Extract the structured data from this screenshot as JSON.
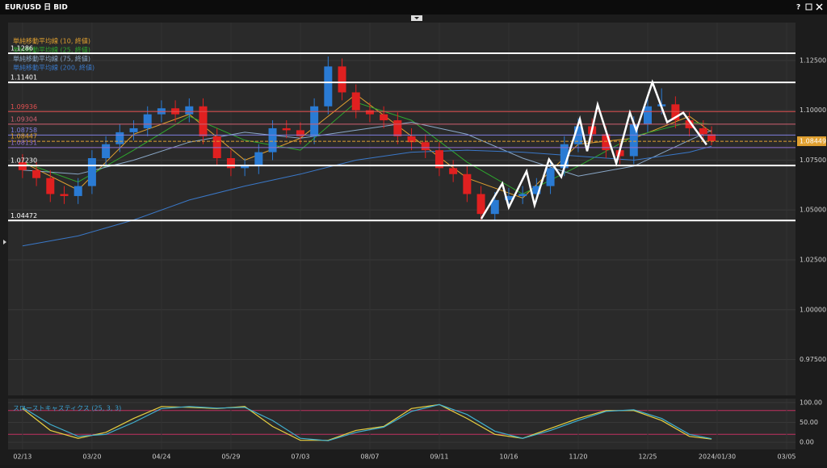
{
  "window": {
    "title": "EUR/USD 日 BID",
    "help": "?"
  },
  "chart_data": [
    {
      "type": "candlestick",
      "xlim": [
        -5.2,
        278.2
      ],
      "ylim": [
        0.957,
        1.144
      ],
      "yticks": [
        {
          "value": 1.125,
          "label": "1.12500"
        },
        {
          "value": 1.1,
          "label": "1.10000"
        },
        {
          "value": 1.075,
          "label": "1.07500"
        },
        {
          "value": 1.05,
          "label": "1.05000"
        },
        {
          "value": 1.025,
          "label": "1.02500"
        },
        {
          "value": 1.0,
          "label": "1.00000"
        },
        {
          "value": 0.975,
          "label": "0.97500"
        }
      ],
      "grid": true,
      "up_color": "#2a7bd4",
      "down_color": "#e02020",
      "x": [
        0,
        5,
        10,
        15,
        20,
        25,
        30,
        35,
        40,
        45,
        50,
        55,
        60,
        65,
        70,
        75,
        80,
        85,
        90,
        95,
        100,
        105,
        110,
        115,
        120,
        125,
        130,
        135,
        140,
        145,
        150,
        155,
        160,
        165,
        170,
        175,
        180,
        185,
        190,
        195,
        200,
        205,
        210,
        215,
        220,
        225,
        230,
        235,
        240,
        245,
        248
      ],
      "open": [
        1.074,
        1.07,
        1.066,
        1.058,
        1.057,
        1.062,
        1.076,
        1.083,
        1.089,
        1.091,
        1.098,
        1.101,
        1.098,
        1.102,
        1.087,
        1.076,
        1.071,
        1.072,
        1.079,
        1.091,
        1.09,
        1.087,
        1.102,
        1.122,
        1.109,
        1.1,
        1.098,
        1.095,
        1.087,
        1.084,
        1.08,
        1.071,
        1.068,
        1.058,
        1.048,
        1.055,
        1.057,
        1.058,
        1.062,
        1.071,
        1.083,
        1.092,
        1.088,
        1.08,
        1.077,
        1.093,
        1.102,
        1.103,
        1.095,
        1.091,
        1.088
      ],
      "high": [
        1.078,
        1.074,
        1.07,
        1.062,
        1.066,
        1.08,
        1.087,
        1.093,
        1.095,
        1.102,
        1.105,
        1.105,
        1.106,
        1.106,
        1.091,
        1.08,
        1.076,
        1.083,
        1.095,
        1.095,
        1.094,
        1.106,
        1.127,
        1.126,
        1.113,
        1.104,
        1.102,
        1.099,
        1.091,
        1.088,
        1.084,
        1.075,
        1.072,
        1.062,
        1.059,
        1.061,
        1.062,
        1.066,
        1.075,
        1.087,
        1.096,
        1.096,
        1.092,
        1.084,
        1.097,
        1.106,
        1.111,
        1.107,
        1.099,
        1.095,
        1.092
      ],
      "low": [
        1.066,
        1.062,
        1.054,
        1.053,
        1.053,
        1.058,
        1.072,
        1.079,
        1.085,
        1.087,
        1.094,
        1.094,
        1.094,
        1.083,
        1.072,
        1.067,
        1.067,
        1.068,
        1.075,
        1.086,
        1.083,
        1.083,
        1.098,
        1.105,
        1.096,
        1.094,
        1.091,
        1.083,
        1.08,
        1.076,
        1.067,
        1.064,
        1.054,
        1.045,
        1.045,
        1.051,
        1.053,
        1.054,
        1.058,
        1.067,
        1.079,
        1.084,
        1.076,
        1.073,
        1.073,
        1.089,
        1.098,
        1.091,
        1.087,
        1.084,
        1.0825
      ],
      "close": [
        1.07,
        1.066,
        1.058,
        1.057,
        1.062,
        1.076,
        1.083,
        1.089,
        1.091,
        1.098,
        1.101,
        1.098,
        1.102,
        1.087,
        1.076,
        1.071,
        1.072,
        1.079,
        1.091,
        1.09,
        1.087,
        1.102,
        1.122,
        1.109,
        1.1,
        1.098,
        1.095,
        1.087,
        1.084,
        1.08,
        1.071,
        1.068,
        1.058,
        1.048,
        1.055,
        1.057,
        1.058,
        1.062,
        1.071,
        1.083,
        1.092,
        1.088,
        1.08,
        1.077,
        1.093,
        1.102,
        1.103,
        1.095,
        1.091,
        1.088,
        1.0845
      ],
      "series": [
        {
          "name": "単純移動平均線 (10, 終値)",
          "color": "#e0a030",
          "x": [
            0,
            20,
            40,
            60,
            80,
            100,
            120,
            140,
            160,
            180,
            200,
            220,
            240,
            248
          ],
          "values": [
            1.074,
            1.06,
            1.088,
            1.098,
            1.075,
            1.086,
            1.108,
            1.087,
            1.066,
            1.056,
            1.083,
            1.086,
            1.097,
            1.089
          ]
        },
        {
          "name": "単純移動平均線 (25, 終値)",
          "color": "#2ea82e",
          "x": [
            0,
            20,
            40,
            60,
            80,
            100,
            120,
            140,
            160,
            180,
            200,
            220,
            240,
            248
          ],
          "values": [
            1.074,
            1.064,
            1.08,
            1.097,
            1.085,
            1.08,
            1.104,
            1.095,
            1.074,
            1.058,
            1.072,
            1.087,
            1.094,
            1.093
          ]
        },
        {
          "name": "単純移動平均線 (75, 終値)",
          "color": "#8aa8c8",
          "x": [
            0,
            20,
            40,
            60,
            80,
            100,
            120,
            140,
            160,
            180,
            200,
            220,
            240,
            248
          ],
          "values": [
            1.07,
            1.068,
            1.075,
            1.084,
            1.089,
            1.086,
            1.09,
            1.094,
            1.088,
            1.076,
            1.067,
            1.072,
            1.085,
            1.09
          ]
        },
        {
          "name": "単純移動平均線 (200, 終値)",
          "color": "#3a78c8",
          "x": [
            0,
            20,
            40,
            60,
            80,
            100,
            120,
            140,
            160,
            180,
            200,
            220,
            240,
            248
          ],
          "values": [
            1.032,
            1.037,
            1.045,
            1.055,
            1.062,
            1.068,
            1.075,
            1.079,
            1.08,
            1.079,
            1.077,
            1.075,
            1.079,
            1.082
          ]
        }
      ],
      "hlines": [
        {
          "value": 1.1286,
          "color": "#ffffff"
        },
        {
          "value": 1.11401,
          "color": "#ffffff"
        },
        {
          "value": 1.09936,
          "color": "#e05050"
        },
        {
          "value": 1.09304,
          "color": "#d06070"
        },
        {
          "value": 1.08758,
          "color": "#8080e0"
        },
        {
          "value": 1.08447,
          "color": "#e0a030"
        },
        {
          "value": 1.08131,
          "color": "#9070d0"
        },
        {
          "value": 1.0723,
          "label": "1.07230",
          "color": "#ffffff"
        },
        {
          "value": 1.04472,
          "color": "#ffffff"
        }
      ],
      "current_price": 1.08449,
      "drawing": {
        "color": "#ffffff",
        "x": [
          165.1,
          172.7,
          175.0,
          181.4,
          184.3,
          189.5,
          193.9,
          200.6,
          203.2,
          207.0,
          213.7,
          218.6,
          220.9,
          226.7,
          232.0,
          237.8,
          246.2
        ],
        "y": [
          1.0456,
          1.0633,
          1.0513,
          1.0694,
          1.0525,
          1.0754,
          1.0666,
          1.0956,
          1.0795,
          1.1028,
          1.0734,
          1.0988,
          1.0899,
          1.1141,
          1.094,
          1.0988,
          1.0827
        ]
      }
    },
    {
      "type": "line",
      "title": "スローストキャスティクス (25, 3, 3)",
      "xlim": [
        -5.2,
        278.2
      ],
      "ylim": [
        -18,
        110
      ],
      "yticks": [
        {
          "value": 100,
          "label": "100.00"
        },
        {
          "value": 50,
          "label": "50.00"
        },
        {
          "value": 0,
          "label": "0.00"
        }
      ],
      "levels": [
        80,
        20
      ],
      "level_color": "#c03060",
      "xticks": [
        {
          "value": 0,
          "label": "02/13"
        },
        {
          "value": 25,
          "label": "03/20"
        },
        {
          "value": 50,
          "label": "04/24"
        },
        {
          "value": 75,
          "label": "05/29"
        },
        {
          "value": 100,
          "label": "07/03"
        },
        {
          "value": 125,
          "label": "08/07"
        },
        {
          "value": 150,
          "label": "09/11"
        },
        {
          "value": 175,
          "label": "10/16"
        },
        {
          "value": 200,
          "label": "11/20"
        },
        {
          "value": 225,
          "label": "12/25"
        },
        {
          "value": 250,
          "label": "2024/01/30"
        },
        {
          "value": 275,
          "label": "03/05"
        }
      ],
      "x": [
        0,
        10,
        20,
        30,
        40,
        50,
        60,
        70,
        80,
        90,
        100,
        110,
        120,
        130,
        140,
        150,
        160,
        170,
        180,
        190,
        200,
        210,
        220,
        230,
        240,
        248
      ],
      "series": [
        {
          "color": "#e8d040",
          "values": [
            85,
            30,
            10,
            25,
            60,
            90,
            88,
            85,
            90,
            40,
            5,
            5,
            30,
            40,
            85,
            95,
            60,
            20,
            10,
            35,
            60,
            80,
            80,
            55,
            15,
            8
          ]
        },
        {
          "color": "#40b0d0",
          "values": [
            88,
            45,
            15,
            20,
            50,
            85,
            90,
            86,
            88,
            55,
            10,
            4,
            25,
            38,
            78,
            95,
            70,
            28,
            10,
            30,
            55,
            78,
            82,
            60,
            20,
            9
          ]
        }
      ]
    }
  ]
}
